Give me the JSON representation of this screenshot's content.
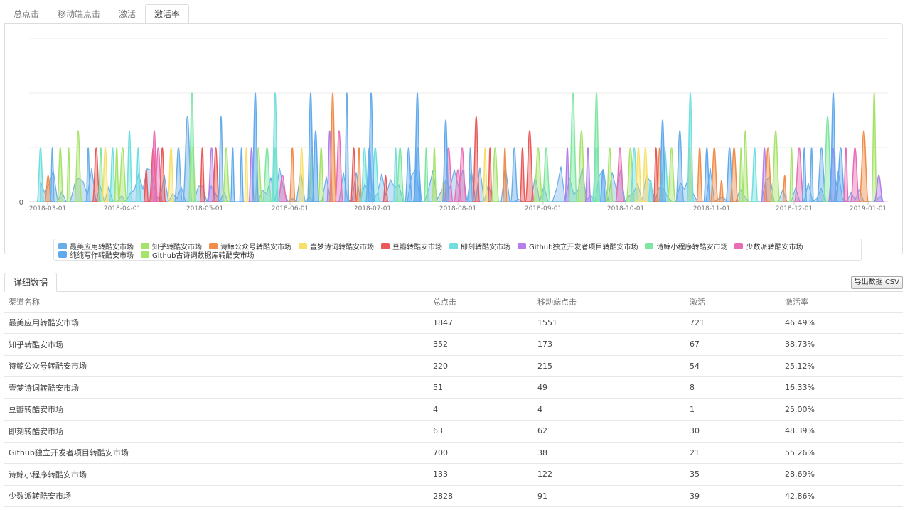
{
  "tabs": [
    "总点击",
    "移动端点击",
    "激活",
    "激活率"
  ],
  "active_tab_index": 3,
  "chart_data": {
    "type": "area",
    "x_ticks": [
      "2018-03-01",
      "2018-04-01",
      "2018-05-01",
      "2018-06-01",
      "2018-07-01",
      "2018-08-01",
      "2018-09-01",
      "2018-10-01",
      "2018-11-01",
      "2018-12-01",
      "2019-01-01"
    ],
    "y_ticks": [
      "0"
    ],
    "grid": true,
    "legend_position": "bottom",
    "series": [
      {
        "name": "最美应用转酷安市场",
        "color": "#6aaee8"
      },
      {
        "name": "知乎转酷安市场",
        "color": "#a6e36b"
      },
      {
        "name": "诗鲸公众号转酷安市场",
        "color": "#f08d4a"
      },
      {
        "name": "壹梦诗词转酷安市场",
        "color": "#f7e067"
      },
      {
        "name": "豆瓣转酷安市场",
        "color": "#ea5858"
      },
      {
        "name": "即刻转酷安市场",
        "color": "#6edede"
      },
      {
        "name": "Github独立开发者项目转酷安市场",
        "color": "#b57ee8"
      },
      {
        "name": "诗鲸小程序转酷安市场",
        "color": "#7ee6a1"
      },
      {
        "name": "少数派转酷安市场",
        "color": "#e86db4"
      },
      {
        "name": "纯纯写作转酷安市场",
        "color": "#5fa9ee"
      },
      {
        "name": "Github古诗词数据库转酷安市场",
        "color": "#a6e36b"
      }
    ]
  },
  "detail": {
    "tab_label": "详细数据",
    "export_label": "导出数据 CSV",
    "columns": [
      "渠道名称",
      "总点击",
      "移动端点击",
      "激活",
      "激活率"
    ],
    "rows": [
      [
        "最美应用转酷安市场",
        "1847",
        "1551",
        "721",
        "46.49%"
      ],
      [
        "知乎转酷安市场",
        "352",
        "173",
        "67",
        "38.73%"
      ],
      [
        "诗鲸公众号转酷安市场",
        "220",
        "215",
        "54",
        "25.12%"
      ],
      [
        "壹梦诗词转酷安市场",
        "51",
        "49",
        "8",
        "16.33%"
      ],
      [
        "豆瓣转酷安市场",
        "4",
        "4",
        "1",
        "25.00%"
      ],
      [
        "即刻转酷安市场",
        "63",
        "62",
        "30",
        "48.39%"
      ],
      [
        "Github独立开发者项目转酷安市场",
        "700",
        "38",
        "21",
        "55.26%"
      ],
      [
        "诗鲸小程序转酷安市场",
        "133",
        "122",
        "35",
        "28.69%"
      ],
      [
        "少数派转酷安市场",
        "2828",
        "91",
        "39",
        "42.86%"
      ]
    ]
  }
}
